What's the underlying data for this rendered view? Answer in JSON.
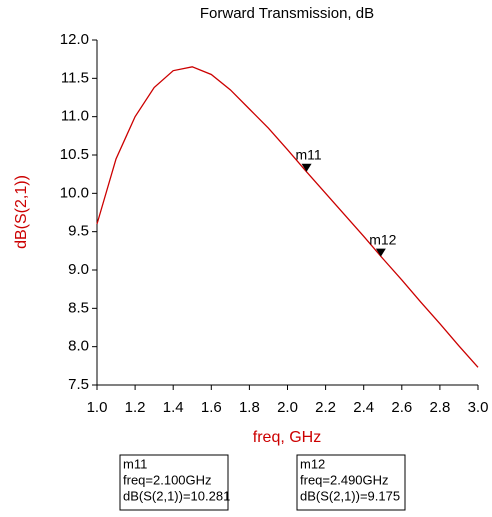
{
  "chart_data": {
    "type": "line",
    "title": "Forward Transmission, dB",
    "x_label": "freq, GHz",
    "y_label": "dB(S(2,1))",
    "x": [
      1.0,
      1.1,
      1.2,
      1.3,
      1.4,
      1.5,
      1.6,
      1.7,
      1.8,
      1.9,
      2.0,
      2.1,
      2.2,
      2.3,
      2.4,
      2.5,
      2.6,
      2.7,
      2.8,
      2.9,
      3.0
    ],
    "series": [
      {
        "name": "dB(S(2,1))",
        "color": "#cc0000",
        "values": [
          9.6,
          10.45,
          11.0,
          11.38,
          11.6,
          11.65,
          11.55,
          11.35,
          11.1,
          10.85,
          10.57,
          10.281,
          10.0,
          9.72,
          9.44,
          9.15,
          8.87,
          8.58,
          8.3,
          8.01,
          7.73
        ]
      }
    ],
    "xlim": [
      1.0,
      3.0
    ],
    "xticks": [
      {
        "value": 1.0,
        "label": "1.0"
      },
      1.2,
      1.4,
      1.6,
      1.8,
      {
        "value": 2.0,
        "label": "2.0"
      },
      2.2,
      2.4,
      2.6,
      2.8,
      {
        "value": 3.0,
        "label": "3.0"
      }
    ],
    "ylim": [
      7.5,
      12.0
    ],
    "yticks": [
      7.5,
      {
        "value": 8.0,
        "label": "8.0"
      },
      8.5,
      {
        "value": 9.0,
        "label": "9.0"
      },
      9.5,
      {
        "value": 10.0,
        "label": "10.0"
      },
      10.5,
      {
        "value": 11.0,
        "label": "11.0"
      },
      11.5,
      {
        "value": 12.0,
        "label": "12.0"
      }
    ],
    "markers": [
      {
        "name": "m11",
        "x": 2.1,
        "y": 10.281,
        "x_text": "freq=2.100GHz",
        "y_text": "dB(S(2,1))=10.281"
      },
      {
        "name": "m12",
        "x": 2.49,
        "y": 9.175,
        "x_text": "freq=2.490GHz",
        "y_text": "dB(S(2,1))=9.175"
      }
    ]
  }
}
